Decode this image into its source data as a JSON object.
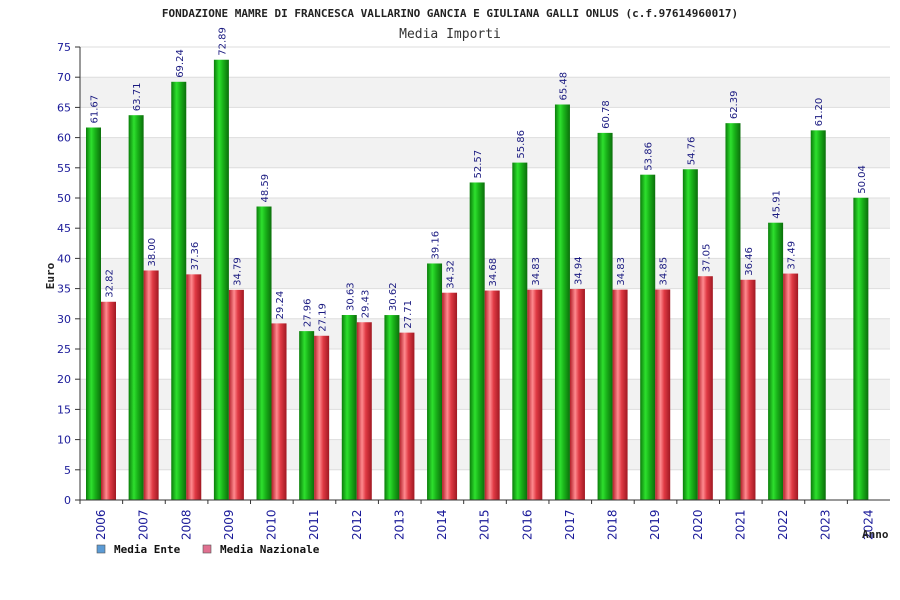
{
  "chart_data": {
    "type": "bar",
    "title": "FONDAZIONE MAMRE DI FRANCESCA VALLARINO GANCIA E GIULIANA GALLI ONLUS (c.f.97614960017)",
    "subtitle": "Media Importi",
    "xlabel": "Anno",
    "ylabel": "Euro",
    "ylim": [
      0,
      75
    ],
    "yticks": [
      0,
      5,
      10,
      15,
      20,
      25,
      30,
      35,
      40,
      45,
      50,
      55,
      60,
      65,
      70,
      75
    ],
    "grid": true,
    "legend_position": "bottom-left",
    "categories": [
      "2006",
      "2007",
      "2008",
      "2009",
      "2010",
      "2011",
      "2012",
      "2013",
      "2014",
      "2015",
      "2016",
      "2017",
      "2018",
      "2019",
      "2020",
      "2021",
      "2022",
      "2023",
      "2024"
    ],
    "series": [
      {
        "name": "Media Ente",
        "legend_color": "#5b9bd5",
        "bar_color": "#19b319",
        "values": [
          61.67,
          63.71,
          69.24,
          72.89,
          48.59,
          27.96,
          30.63,
          30.62,
          39.16,
          52.57,
          55.86,
          65.48,
          60.78,
          53.86,
          54.76,
          62.39,
          45.91,
          61.2,
          50.04
        ],
        "labels": [
          "61.67",
          "63.71",
          "69.24",
          "72.89",
          "48.59",
          "27.96",
          "30.63",
          "30.62",
          "39.16",
          "52.57",
          "55.86",
          "65.48",
          "60.78",
          "53.86",
          "54.76",
          "62.39",
          "45.91",
          "61.20",
          "50.04"
        ]
      },
      {
        "name": "Media Nazionale",
        "legend_color": "#e07090",
        "bar_color": "#e03a44",
        "values": [
          32.82,
          38.0,
          37.36,
          34.79,
          29.24,
          27.19,
          29.43,
          27.71,
          34.32,
          34.68,
          34.83,
          34.94,
          34.83,
          34.85,
          37.05,
          36.46,
          37.49,
          null,
          null
        ],
        "labels": [
          "32.82",
          "38.00",
          "37.36",
          "34.79",
          "29.24",
          "27.19",
          "29.43",
          "27.71",
          "34.32",
          "34.68",
          "34.83",
          "34.94",
          "34.83",
          "34.85",
          "37.05",
          "36.46",
          "37.49",
          "",
          ""
        ]
      }
    ]
  }
}
